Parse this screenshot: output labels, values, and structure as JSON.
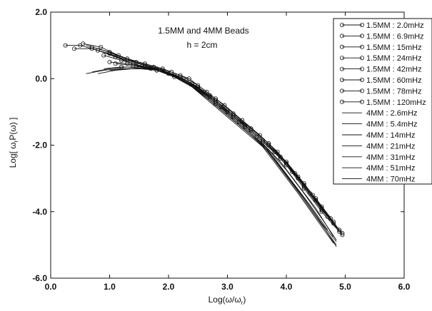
{
  "chart_data": {
    "type": "line",
    "annotations": [
      "1.5MM and 4MM Beads",
      "h = 2cm"
    ],
    "xlabel": "Log(ω/ω",
    "xlabel_sub": "r",
    "xlabel_end": ")",
    "ylabel": "Log[ ω",
    "ylabel_sub": "r",
    "ylabel_end": "P(ω) ]",
    "xlim": [
      0.0,
      6.0
    ],
    "ylim": [
      -6.0,
      2.0
    ],
    "x_ticks": [
      0.0,
      1.0,
      2.0,
      3.0,
      4.0,
      5.0,
      6.0
    ],
    "x_tick_labels": [
      "0.0",
      "1.0",
      "2.0",
      "3.0",
      "4.0",
      "5.0",
      "6.0"
    ],
    "y_ticks": [
      2.0,
      0.0,
      -2.0,
      -4.0,
      -6.0
    ],
    "y_tick_labels": [
      "2.0",
      "0.0",
      "-2.0",
      "-4.0",
      "-6.0"
    ],
    "legend_position": "top-right",
    "grid": false,
    "series": [
      {
        "name": "1.5MM : 2.0mHz",
        "marker": "circle",
        "x": [
          0.25,
          0.5,
          0.8,
          1.1,
          1.4,
          1.8,
          2.1,
          2.5,
          2.8,
          3.1,
          3.4,
          3.7,
          4.0,
          4.3,
          4.6,
          4.95
        ],
        "y": [
          1.0,
          1.0,
          0.85,
          0.65,
          0.45,
          0.25,
          0.05,
          -0.3,
          -0.75,
          -1.15,
          -1.55,
          -2.0,
          -2.6,
          -3.3,
          -4.0,
          -4.7
        ]
      },
      {
        "name": "1.5MM : 6.9mHz",
        "marker": "circle",
        "x": [
          0.4,
          0.7,
          1.0,
          1.3,
          1.6,
          1.9,
          2.2,
          2.5,
          2.8,
          3.1,
          3.4,
          3.7,
          4.0,
          4.3,
          4.6,
          4.95
        ],
        "y": [
          0.9,
          0.9,
          0.75,
          0.55,
          0.4,
          0.25,
          0.05,
          -0.3,
          -0.7,
          -1.1,
          -1.5,
          -1.95,
          -2.55,
          -3.25,
          -3.95,
          -4.65
        ]
      },
      {
        "name": "1.5MM : 15mHz",
        "marker": "circle",
        "x": [
          0.55,
          0.85,
          1.15,
          1.45,
          1.75,
          2.05,
          2.35,
          2.65,
          2.95,
          3.25,
          3.55,
          3.85,
          4.15,
          4.45,
          4.75
        ],
        "y": [
          1.05,
          0.95,
          0.7,
          0.5,
          0.35,
          0.2,
          0.0,
          -0.4,
          -0.8,
          -1.25,
          -1.7,
          -2.2,
          -2.85,
          -3.5,
          -4.2
        ]
      },
      {
        "name": "1.5MM : 24mHz",
        "marker": "circle",
        "x": [
          0.7,
          1.0,
          1.3,
          1.6,
          1.9,
          2.2,
          2.5,
          2.8,
          3.1,
          3.4,
          3.7,
          4.0,
          4.3,
          4.6,
          4.9
        ],
        "y": [
          0.95,
          0.8,
          0.6,
          0.45,
          0.3,
          0.1,
          -0.2,
          -0.6,
          -1.05,
          -1.5,
          -1.95,
          -2.5,
          -3.15,
          -3.85,
          -4.55
        ]
      },
      {
        "name": "1.5MM : 42mHz",
        "marker": "circle",
        "x": [
          0.9,
          1.2,
          1.5,
          1.8,
          2.1,
          2.4,
          2.7,
          3.0,
          3.3,
          3.6,
          3.9,
          4.2,
          4.5,
          4.8
        ],
        "y": [
          0.7,
          0.55,
          0.4,
          0.3,
          0.1,
          -0.15,
          -0.5,
          -0.95,
          -1.4,
          -1.85,
          -2.35,
          -2.95,
          -3.6,
          -4.3
        ]
      },
      {
        "name": "1.5MM : 60mHz",
        "marker": "circle",
        "x": [
          1.0,
          1.3,
          1.6,
          1.9,
          2.2,
          2.5,
          2.8,
          3.1,
          3.4,
          3.7,
          4.0,
          4.3,
          4.6,
          4.9
        ],
        "y": [
          0.5,
          0.45,
          0.35,
          0.25,
          0.05,
          -0.25,
          -0.65,
          -1.1,
          -1.55,
          -2.0,
          -2.55,
          -3.2,
          -3.9,
          -4.6
        ]
      },
      {
        "name": "1.5MM : 78mHz",
        "marker": "circle",
        "x": [
          1.1,
          1.4,
          1.7,
          2.0,
          2.3,
          2.6,
          2.9,
          3.2,
          3.5,
          3.8,
          4.1,
          4.4,
          4.7
        ],
        "y": [
          0.45,
          0.4,
          0.3,
          0.15,
          -0.05,
          -0.4,
          -0.85,
          -1.3,
          -1.75,
          -2.2,
          -2.8,
          -3.45,
          -4.15
        ]
      },
      {
        "name": "1.5MM : 120mHz",
        "marker": "circle",
        "x": [
          1.2,
          1.5,
          1.8,
          2.1,
          2.4,
          2.7,
          3.0,
          3.3,
          3.6,
          3.9,
          4.2,
          4.5,
          4.8
        ],
        "y": [
          0.35,
          0.35,
          0.25,
          0.1,
          -0.15,
          -0.55,
          -1.0,
          -1.45,
          -1.9,
          -2.4,
          -3.0,
          -3.65,
          -4.35
        ]
      },
      {
        "name": "4MM : 2.6mHz",
        "marker": "none",
        "x": [
          0.6,
          0.9,
          1.2,
          1.5,
          1.8,
          2.1,
          2.4,
          2.7,
          3.0,
          3.3,
          3.6,
          3.9,
          4.2,
          4.5,
          4.85
        ],
        "y": [
          1.0,
          0.85,
          0.65,
          0.45,
          0.3,
          0.1,
          -0.2,
          -0.6,
          -1.05,
          -1.5,
          -1.95,
          -2.65,
          -3.35,
          -4.1,
          -5.05
        ]
      },
      {
        "name": "4MM : 5.4mHz",
        "marker": "none",
        "x": [
          0.6,
          0.9,
          1.2,
          1.5,
          1.8,
          2.1,
          2.4,
          2.7,
          3.0,
          3.3,
          3.6,
          3.9,
          4.2,
          4.5,
          4.85
        ],
        "y": [
          0.95,
          0.8,
          0.6,
          0.45,
          0.3,
          0.05,
          -0.25,
          -0.65,
          -1.1,
          -1.55,
          -2.0,
          -2.7,
          -3.4,
          -4.15,
          -5.0
        ]
      },
      {
        "name": "4MM : 14mHz",
        "marker": "none",
        "x": [
          0.6,
          0.9,
          1.2,
          1.5,
          1.8,
          2.1,
          2.4,
          2.7,
          3.0,
          3.3,
          3.6,
          3.9,
          4.2,
          4.5,
          4.8
        ],
        "y": [
          0.15,
          0.25,
          0.3,
          0.3,
          0.25,
          0.05,
          -0.25,
          -0.7,
          -1.15,
          -1.6,
          -2.05,
          -2.75,
          -3.45,
          -4.2,
          -4.95
        ]
      },
      {
        "name": "4MM : 21mHz",
        "marker": "none",
        "x": [
          0.7,
          1.0,
          1.3,
          1.6,
          1.9,
          2.2,
          2.5,
          2.8,
          3.1,
          3.4,
          3.7,
          4.0,
          4.3,
          4.6,
          4.85
        ],
        "y": [
          0.2,
          0.3,
          0.35,
          0.3,
          0.25,
          0.0,
          -0.35,
          -0.8,
          -1.25,
          -1.7,
          -2.2,
          -2.9,
          -3.6,
          -4.35,
          -4.9
        ]
      },
      {
        "name": "4MM : 31mHz",
        "marker": "none",
        "x": [
          0.8,
          1.1,
          1.4,
          1.7,
          2.0,
          2.3,
          2.6,
          2.9,
          3.2,
          3.5,
          3.8,
          4.1,
          4.4,
          4.7
        ],
        "y": [
          0.15,
          0.25,
          0.3,
          0.3,
          0.15,
          -0.1,
          -0.5,
          -0.95,
          -1.4,
          -1.85,
          -2.4,
          -3.1,
          -3.8,
          -4.55
        ]
      },
      {
        "name": "4MM : 51mHz",
        "marker": "none",
        "x": [
          0.9,
          1.2,
          1.5,
          1.8,
          2.1,
          2.4,
          2.7,
          3.0,
          3.3,
          3.6,
          3.9,
          4.2,
          4.5,
          4.8
        ],
        "y": [
          0.3,
          0.35,
          0.35,
          0.3,
          0.1,
          -0.2,
          -0.6,
          -1.05,
          -1.5,
          -1.95,
          -2.5,
          -3.2,
          -3.9,
          -4.75
        ]
      },
      {
        "name": "4MM : 70mHz",
        "marker": "none",
        "x": [
          1.0,
          1.3,
          1.6,
          1.9,
          2.2,
          2.5,
          2.8,
          3.1,
          3.4,
          3.7,
          4.0,
          4.3,
          4.6,
          4.85
        ],
        "y": [
          0.25,
          0.3,
          0.3,
          0.25,
          0.05,
          -0.3,
          -0.75,
          -1.2,
          -1.65,
          -2.15,
          -2.75,
          -3.45,
          -4.2,
          -4.85
        ]
      }
    ]
  }
}
